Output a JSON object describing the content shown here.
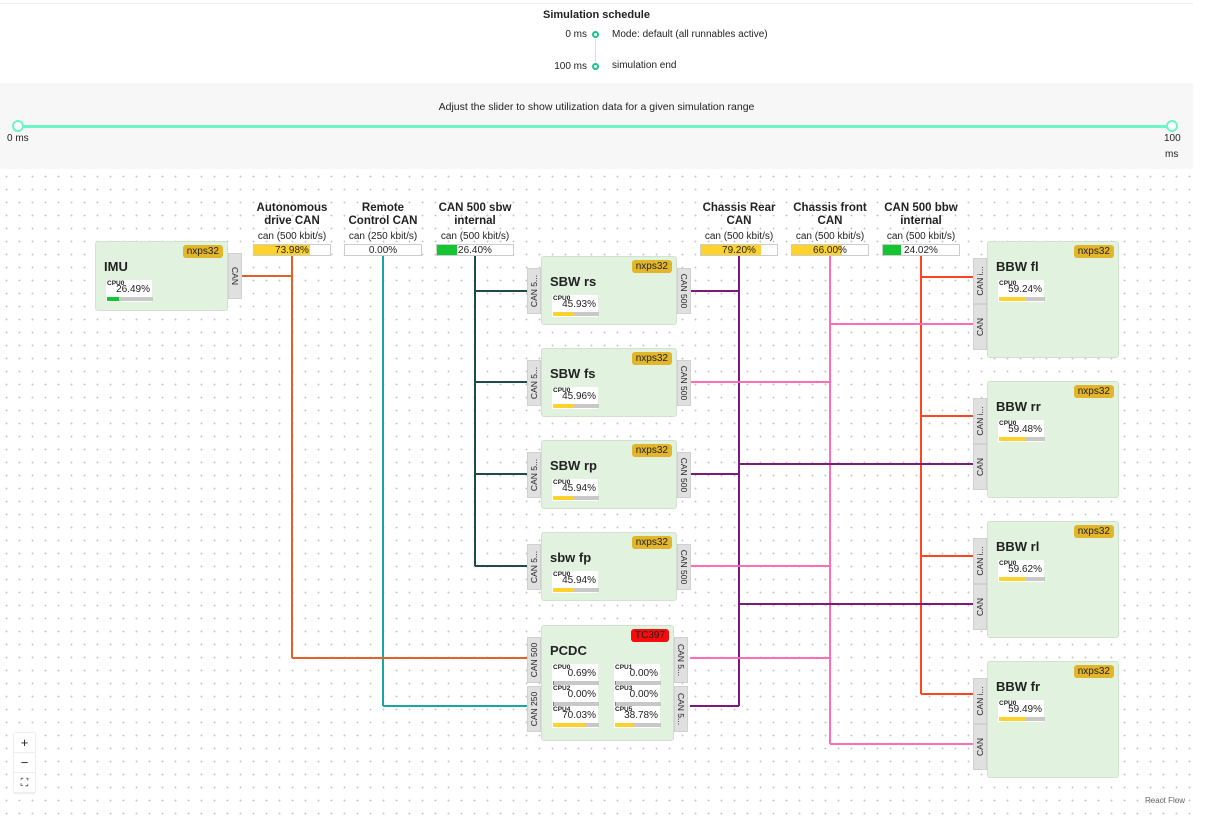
{
  "schedule": {
    "title": "Simulation schedule",
    "entries": [
      {
        "time": "0 ms",
        "label": "Mode: default (all runnables active)"
      },
      {
        "time": "100 ms",
        "label": "simulation end"
      }
    ],
    "accent": "#19c38a"
  },
  "slider": {
    "caption": "Adjust the slider to show utilization data for a given simulation range",
    "min_label": "0 ms",
    "max_label_a": "100",
    "max_label_b": "ms",
    "range_start": 0,
    "range_end": 100,
    "color": "#6ef5c5"
  },
  "buses": [
    {
      "id": "auto",
      "name1": "Autonomous",
      "name2": "drive CAN",
      "speed": "can (500 kbit/s)",
      "util": "73.98%",
      "value": 73.98,
      "color": "#e0622a"
    },
    {
      "id": "remote",
      "name1": "Remote",
      "name2": "Control CAN",
      "speed": "can (250 kbit/s)",
      "util": "0.00%",
      "value": 0.0,
      "color": "#1aa6a6"
    },
    {
      "id": "sbwint",
      "name1": "CAN 500 sbw",
      "name2": "internal",
      "speed": "can (500 kbit/s)",
      "util": "26.40%",
      "value": 26.4,
      "color": "#1f4a4a"
    },
    {
      "id": "rear",
      "name1": "Chassis Rear",
      "name2": "CAN",
      "speed": "can (500 kbit/s)",
      "util": "79.20%",
      "value": 79.2,
      "color": "#7b1a7b"
    },
    {
      "id": "front",
      "name1": "Chassis front",
      "name2": "CAN",
      "speed": "can (500 kbit/s)",
      "util": "66.00%",
      "value": 66.0,
      "color": "#ff6eb4"
    },
    {
      "id": "bbwint",
      "name1": "CAN 500 bbw",
      "name2": "internal",
      "speed": "can (500 kbit/s)",
      "util": "24.02%",
      "value": 24.02,
      "color": "#ff4422"
    }
  ],
  "nodes": [
    {
      "id": "imu",
      "name": "IMU",
      "chip": "nxps32",
      "cpus": [
        {
          "label": "CPU0",
          "util": "26.49%",
          "value": 26.49
        }
      ],
      "left": [],
      "right": [
        "CAN"
      ]
    },
    {
      "id": "sbwrs",
      "name": "SBW rs",
      "chip": "nxps32",
      "cpus": [
        {
          "label": "CPU0",
          "util": "45.93%",
          "value": 45.93
        }
      ],
      "left": [
        "CAN 5..."
      ],
      "right": [
        "CAN 500"
      ]
    },
    {
      "id": "sbwfs",
      "name": "SBW fs",
      "chip": "nxps32",
      "cpus": [
        {
          "label": "CPU0",
          "util": "45.96%",
          "value": 45.96
        }
      ],
      "left": [
        "CAN 5..."
      ],
      "right": [
        "CAN 500"
      ]
    },
    {
      "id": "sbwrp",
      "name": "SBW rp",
      "chip": "nxps32",
      "cpus": [
        {
          "label": "CPU0",
          "util": "45.94%",
          "value": 45.94
        }
      ],
      "left": [
        "CAN 5..."
      ],
      "right": [
        "CAN 500"
      ]
    },
    {
      "id": "sbwfp",
      "name": "sbw fp",
      "chip": "nxps32",
      "cpus": [
        {
          "label": "CPU0",
          "util": "45.94%",
          "value": 45.94
        }
      ],
      "left": [
        "CAN 5..."
      ],
      "right": [
        "CAN 500"
      ]
    },
    {
      "id": "pcdc",
      "name": "PCDC",
      "chip": "TC397",
      "chip_color": "#f80b0b",
      "cpus": [
        {
          "label": "CPU0",
          "util": "0.69%",
          "value": 0.69
        },
        {
          "label": "CPU1",
          "util": "0.00%",
          "value": 0
        },
        {
          "label": "CPU2",
          "util": "0.00%",
          "value": 0
        },
        {
          "label": "CPU3",
          "util": "0.00%",
          "value": 0
        },
        {
          "label": "CPU4",
          "util": "70.03%",
          "value": 70.03
        },
        {
          "label": "CPU5",
          "util": "38.78%",
          "value": 38.78
        }
      ],
      "left": [
        "CAN 500",
        "CAN 250"
      ],
      "right": [
        "CAN 5...",
        "CAN 5..."
      ]
    },
    {
      "id": "bbwfl",
      "name": "BBW fl",
      "chip": "nxps32",
      "cpus": [
        {
          "label": "CPU0",
          "util": "59.24%",
          "value": 59.24
        }
      ],
      "left": [
        "CAN i...",
        "CAN"
      ],
      "right": []
    },
    {
      "id": "bbwrr",
      "name": "BBW rr",
      "chip": "nxps32",
      "cpus": [
        {
          "label": "CPU0",
          "util": "59.48%",
          "value": 59.48
        }
      ],
      "left": [
        "CAN i...",
        "CAN"
      ],
      "right": []
    },
    {
      "id": "bbwrl",
      "name": "BBW rl",
      "chip": "nxps32",
      "cpus": [
        {
          "label": "CPU0",
          "util": "59.62%",
          "value": 59.62
        }
      ],
      "left": [
        "CAN i...",
        "CAN"
      ],
      "right": []
    },
    {
      "id": "bbwfr",
      "name": "BBW fr",
      "chip": "nxps32",
      "cpus": [
        {
          "label": "CPU0",
          "util": "59.49%",
          "value": 59.49
        }
      ],
      "left": [
        "CAN i...",
        "CAN"
      ],
      "right": []
    }
  ],
  "util_colors": {
    "low": "#14c430",
    "high": "#fdd22c"
  },
  "controls": {
    "zoom_in": "+",
    "zoom_out": "−",
    "fit": "⛶"
  },
  "attribution": "React Flow"
}
